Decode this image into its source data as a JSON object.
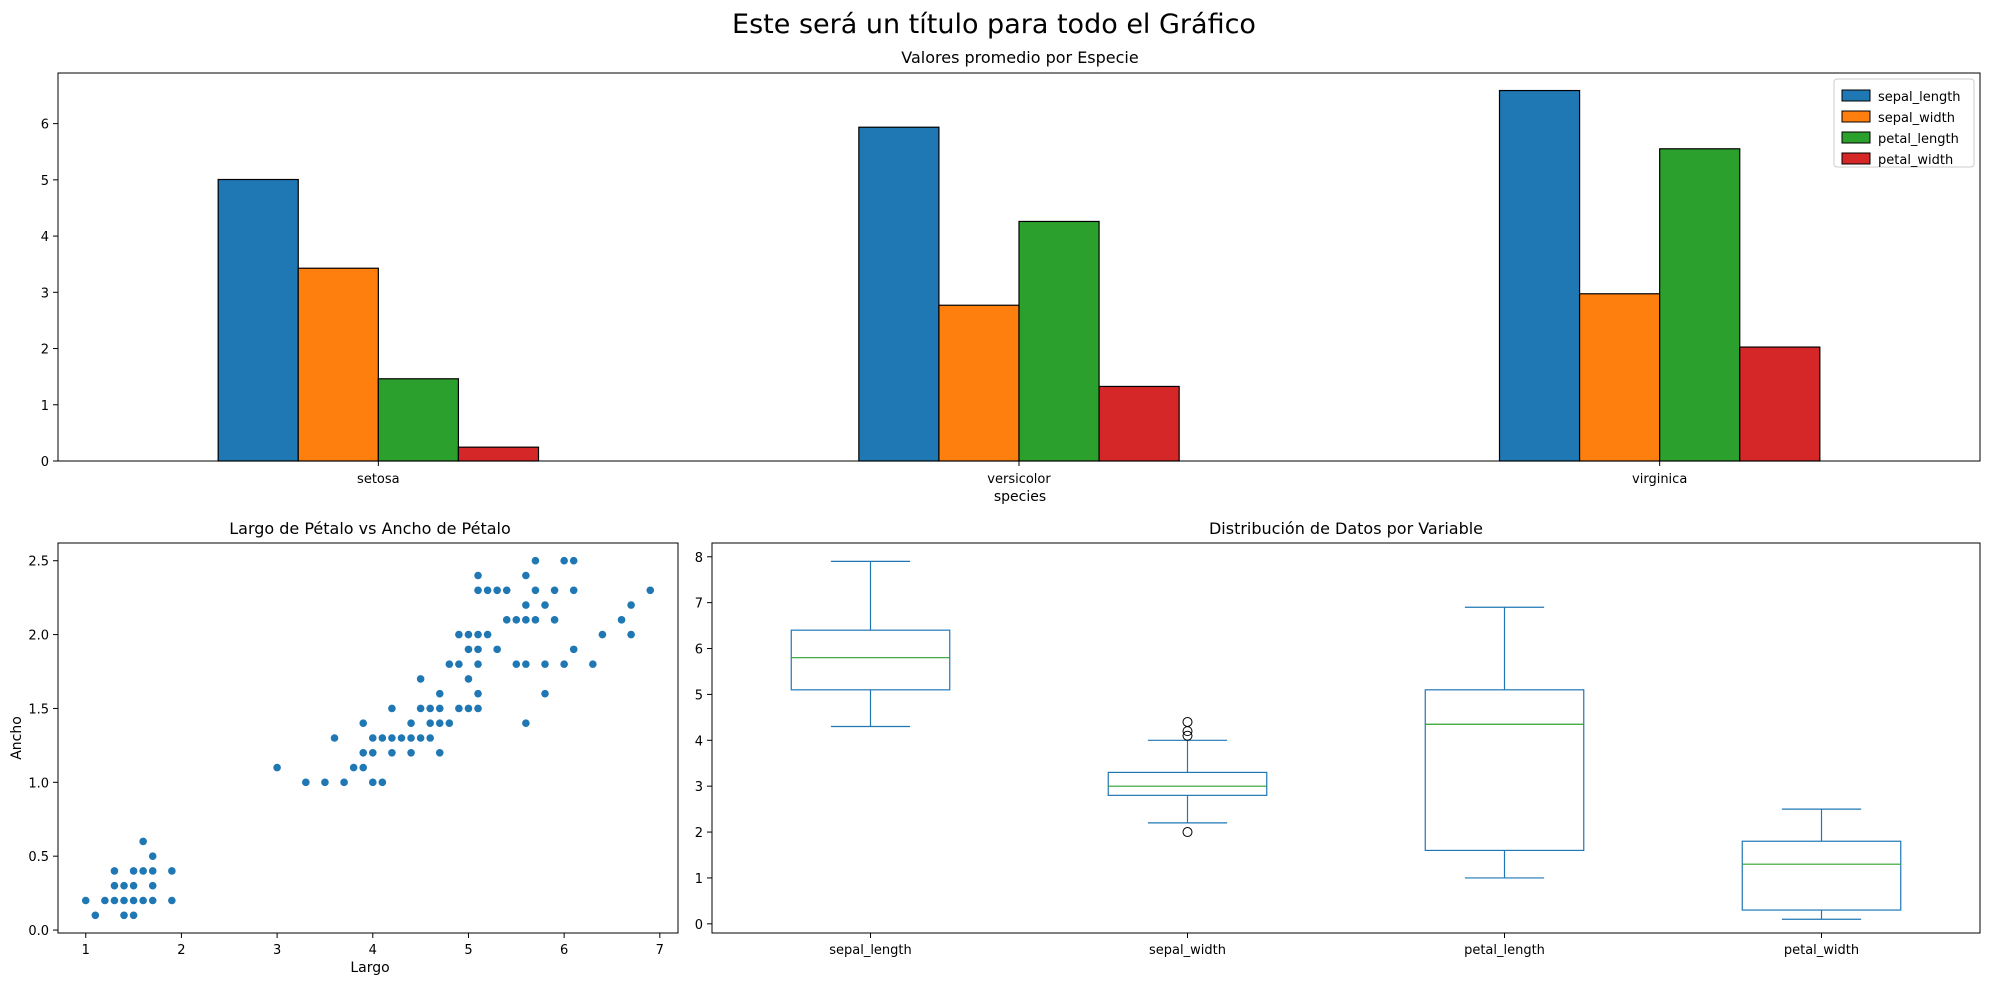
{
  "suptitle": "Este será un título para todo el Gráfico",
  "chart_data": [
    {
      "type": "bar",
      "title": "Valores promedio por Especie",
      "xlabel": "species",
      "ylabel": "",
      "categories": [
        "setosa",
        "versicolor",
        "virginica"
      ],
      "ylim": [
        0,
        6.9
      ],
      "yticks": [
        0,
        1,
        2,
        3,
        4,
        5,
        6
      ],
      "legend_position": "top-right",
      "series": [
        {
          "name": "sepal_length",
          "color": "#1f77b4",
          "values": [
            5.006,
            5.936,
            6.588
          ]
        },
        {
          "name": "sepal_width",
          "color": "#ff7f0e",
          "values": [
            3.428,
            2.77,
            2.974
          ]
        },
        {
          "name": "petal_length",
          "color": "#2ca02c",
          "values": [
            1.462,
            4.26,
            5.552
          ]
        },
        {
          "name": "petal_width",
          "color": "#d62728",
          "values": [
            0.246,
            1.326,
            2.026
          ]
        }
      ]
    },
    {
      "type": "scatter",
      "title": "Largo de Pétalo vs Ancho de Pétalo",
      "xlabel": "Largo",
      "ylabel": "Ancho",
      "xlim": [
        0.71,
        7.19
      ],
      "ylim": [
        -0.02,
        2.62
      ],
      "xticks": [
        1,
        2,
        3,
        4,
        5,
        6,
        7
      ],
      "yticks": [
        "0.0",
        "0.5",
        "1.0",
        "1.5",
        "2.0",
        "2.5"
      ],
      "color": "#1f77b4",
      "points": [
        [
          1.0,
          0.2
        ],
        [
          1.1,
          0.1
        ],
        [
          1.2,
          0.2
        ],
        [
          1.3,
          0.2
        ],
        [
          1.3,
          0.3
        ],
        [
          1.3,
          0.4
        ],
        [
          1.4,
          0.1
        ],
        [
          1.4,
          0.2
        ],
        [
          1.4,
          0.3
        ],
        [
          1.5,
          0.1
        ],
        [
          1.5,
          0.2
        ],
        [
          1.5,
          0.3
        ],
        [
          1.5,
          0.4
        ],
        [
          1.6,
          0.2
        ],
        [
          1.6,
          0.4
        ],
        [
          1.6,
          0.6
        ],
        [
          1.7,
          0.2
        ],
        [
          1.7,
          0.3
        ],
        [
          1.7,
          0.4
        ],
        [
          1.7,
          0.5
        ],
        [
          1.9,
          0.2
        ],
        [
          1.9,
          0.4
        ],
        [
          3.0,
          1.1
        ],
        [
          3.3,
          1.0
        ],
        [
          3.5,
          1.0
        ],
        [
          3.6,
          1.3
        ],
        [
          3.7,
          1.0
        ],
        [
          3.8,
          1.1
        ],
        [
          3.9,
          1.1
        ],
        [
          3.9,
          1.2
        ],
        [
          3.9,
          1.4
        ],
        [
          4.0,
          1.0
        ],
        [
          4.0,
          1.2
        ],
        [
          4.0,
          1.3
        ],
        [
          4.1,
          1.0
        ],
        [
          4.1,
          1.3
        ],
        [
          4.2,
          1.2
        ],
        [
          4.2,
          1.3
        ],
        [
          4.2,
          1.5
        ],
        [
          4.3,
          1.3
        ],
        [
          4.4,
          1.2
        ],
        [
          4.4,
          1.3
        ],
        [
          4.4,
          1.4
        ],
        [
          4.5,
          1.3
        ],
        [
          4.5,
          1.5
        ],
        [
          4.5,
          1.7
        ],
        [
          4.6,
          1.3
        ],
        [
          4.6,
          1.4
        ],
        [
          4.6,
          1.5
        ],
        [
          4.7,
          1.2
        ],
        [
          4.7,
          1.4
        ],
        [
          4.7,
          1.5
        ],
        [
          4.7,
          1.6
        ],
        [
          4.8,
          1.4
        ],
        [
          4.8,
          1.8
        ],
        [
          4.9,
          1.5
        ],
        [
          4.9,
          1.8
        ],
        [
          4.9,
          2.0
        ],
        [
          5.0,
          1.5
        ],
        [
          5.0,
          1.7
        ],
        [
          5.0,
          1.9
        ],
        [
          5.0,
          2.0
        ],
        [
          5.1,
          1.5
        ],
        [
          5.1,
          1.6
        ],
        [
          5.1,
          1.8
        ],
        [
          5.1,
          1.9
        ],
        [
          5.1,
          2.0
        ],
        [
          5.1,
          2.3
        ],
        [
          5.1,
          2.4
        ],
        [
          5.2,
          2.0
        ],
        [
          5.2,
          2.3
        ],
        [
          5.3,
          1.9
        ],
        [
          5.3,
          2.3
        ],
        [
          5.4,
          2.1
        ],
        [
          5.4,
          2.3
        ],
        [
          5.5,
          1.8
        ],
        [
          5.5,
          2.1
        ],
        [
          5.6,
          1.4
        ],
        [
          5.6,
          1.8
        ],
        [
          5.6,
          2.1
        ],
        [
          5.6,
          2.2
        ],
        [
          5.6,
          2.4
        ],
        [
          5.7,
          2.1
        ],
        [
          5.7,
          2.3
        ],
        [
          5.7,
          2.5
        ],
        [
          5.8,
          1.6
        ],
        [
          5.8,
          1.8
        ],
        [
          5.8,
          2.2
        ],
        [
          5.9,
          2.1
        ],
        [
          5.9,
          2.3
        ],
        [
          6.0,
          1.8
        ],
        [
          6.0,
          2.5
        ],
        [
          6.1,
          1.9
        ],
        [
          6.1,
          2.3
        ],
        [
          6.1,
          2.5
        ],
        [
          6.3,
          1.8
        ],
        [
          6.4,
          2.0
        ],
        [
          6.6,
          2.1
        ],
        [
          6.7,
          2.0
        ],
        [
          6.7,
          2.2
        ],
        [
          6.9,
          2.3
        ]
      ]
    },
    {
      "type": "box",
      "title": "Distribución de Datos por Variable",
      "xlabel": "",
      "ylabel": "",
      "categories": [
        "sepal_length",
        "sepal_width",
        "petal_length",
        "petal_width"
      ],
      "ylim": [
        -0.2,
        8.3
      ],
      "yticks": [
        0,
        1,
        2,
        3,
        4,
        5,
        6,
        7,
        8
      ],
      "box_color": "#1f77b4",
      "median_color": "#2ca02c",
      "boxes": [
        {
          "min": 4.3,
          "q1": 5.1,
          "median": 5.8,
          "q3": 6.4,
          "max": 7.9,
          "outliers": []
        },
        {
          "min": 2.2,
          "q1": 2.8,
          "median": 3.0,
          "q3": 3.3,
          "max": 4.0,
          "outliers": [
            4.4,
            4.1,
            4.2,
            2.0
          ]
        },
        {
          "min": 1.0,
          "q1": 1.6,
          "median": 4.35,
          "q3": 5.1,
          "max": 6.9,
          "outliers": []
        },
        {
          "min": 0.1,
          "q1": 0.3,
          "median": 1.3,
          "q3": 1.8,
          "max": 2.5,
          "outliers": []
        }
      ]
    }
  ]
}
